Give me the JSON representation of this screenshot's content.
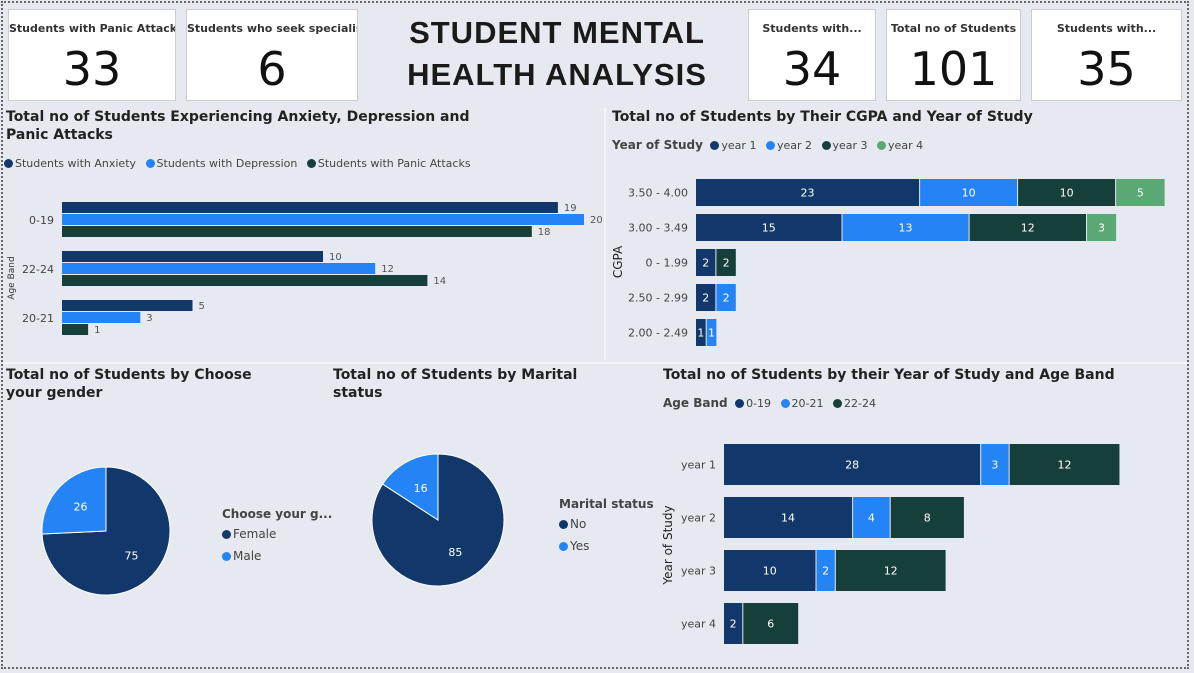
{
  "header": {
    "title_line1": "STUDENT MENTAL",
    "title_line2": "HEALTH ANALYSIS"
  },
  "cards": [
    {
      "label": "Students with Panic Attacks",
      "value": "33"
    },
    {
      "label": "Students who seek specialist",
      "value": "6"
    },
    {
      "label": "Students with...",
      "value": "34"
    },
    {
      "label": "Total no of Students",
      "value": "101"
    },
    {
      "label": "Students with...",
      "value": "35"
    }
  ],
  "colors": {
    "dark_blue": "#12386b",
    "bright_blue": "#2484f5",
    "dark_green": "#163f3a",
    "light_green": "#5aa874"
  },
  "panels": {
    "age_band": {
      "title": "Total no of Students Experiencing Anxiety, Depression and Panic Attacks",
      "legend": [
        "Students with Anxiety",
        "Students with Depression",
        "Students with Panic Attacks"
      ]
    },
    "cgpa": {
      "title": "Total no of Students by Their CGPA and Year of Study",
      "legend_title": "Year of Study",
      "legend": [
        "year 1",
        "year 2",
        "year 3",
        "year 4"
      ]
    },
    "gender": {
      "title": "Total no of Students by Choose your gender",
      "legend_title": "Choose your g...",
      "legend": [
        "Female",
        "Male"
      ]
    },
    "marital": {
      "title": "Total no of Students by Marital status",
      "legend_title": "Marital status",
      "legend": [
        "No",
        "Yes"
      ]
    },
    "year_age": {
      "title": "Total no of Students by their Year of Study and Age Band",
      "legend_title": "Age Band",
      "legend": [
        "0-19",
        "20-21",
        "22-24"
      ]
    }
  },
  "chart_data": [
    {
      "type": "bar",
      "orientation": "horizontal",
      "title": "Total no of Students Experiencing Anxiety, Depression and Panic Attacks",
      "ylabel": "Age Band",
      "categories": [
        "0-19",
        "22-24",
        "20-21"
      ],
      "series": [
        {
          "name": "Students with Anxiety",
          "values": [
            19,
            10,
            5
          ]
        },
        {
          "name": "Students with Depression",
          "values": [
            20,
            12,
            3
          ]
        },
        {
          "name": "Students with Panic Attacks",
          "values": [
            18,
            14,
            1
          ]
        }
      ],
      "legend_position": "top-left"
    },
    {
      "type": "bar",
      "orientation": "horizontal",
      "stacked": true,
      "title": "Total no of Students by Their CGPA and Year of Study",
      "ylabel": "CGPA",
      "categories": [
        "3.50 - 4.00",
        "3.00 - 3.49",
        "0 - 1.99",
        "2.50 - 2.99",
        "2.00 - 2.49"
      ],
      "series": [
        {
          "name": "year 1",
          "values": [
            23,
            15,
            2,
            2,
            1
          ]
        },
        {
          "name": "year 2",
          "values": [
            10,
            13,
            0,
            2,
            1
          ]
        },
        {
          "name": "year 3",
          "values": [
            10,
            12,
            2,
            0,
            0
          ]
        },
        {
          "name": "year 4",
          "values": [
            5,
            3,
            0,
            0,
            0
          ]
        }
      ],
      "legend_position": "top-left"
    },
    {
      "type": "pie",
      "title": "Total no of Students by Choose your gender",
      "categories": [
        "Female",
        "Male"
      ],
      "values": [
        75,
        26
      ],
      "legend_position": "right"
    },
    {
      "type": "pie",
      "title": "Total no of Students by Marital status",
      "categories": [
        "No",
        "Yes"
      ],
      "values": [
        85,
        16
      ],
      "legend_position": "right"
    },
    {
      "type": "bar",
      "orientation": "horizontal",
      "stacked": true,
      "title": "Total no of Students by their Year of Study and Age Band",
      "ylabel": "Year of Study",
      "categories": [
        "year 1",
        "year 2",
        "year 3",
        "year 4"
      ],
      "series": [
        {
          "name": "0-19",
          "values": [
            28,
            14,
            10,
            2
          ]
        },
        {
          "name": "20-21",
          "values": [
            3,
            4,
            2,
            0
          ]
        },
        {
          "name": "22-24",
          "values": [
            12,
            8,
            12,
            6
          ]
        }
      ],
      "legend_position": "top-left"
    }
  ]
}
